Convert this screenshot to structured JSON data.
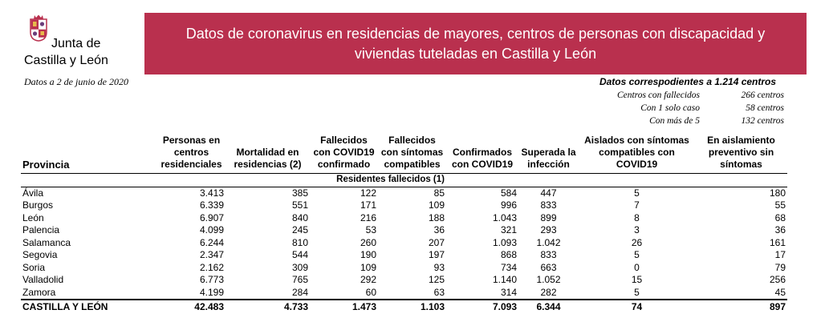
{
  "logo": {
    "line1": "Junta de",
    "line2": "Castilla y León"
  },
  "date_note": "Datos a 2 de junio de 2020",
  "banner_title": "Datos de coronavirus en residencias de mayores, centros de personas con discapacidad y viviendas tuteladas en Castilla y León",
  "summary": {
    "title": "Datos correspodientes a 1.214 centros",
    "rows": [
      {
        "label": "Centros con fallecidos",
        "value": "266 centros"
      },
      {
        "label": "Con 1 solo caso",
        "value": "58 centros"
      },
      {
        "label": "Con más de 5",
        "value": "132 centros"
      }
    ]
  },
  "table": {
    "headers": [
      "Provincia",
      "Personas en centros residenciales",
      "Mortalidad en residencias (2)",
      "Fallecidos con COVID19 confirmado",
      "Fallecidos con síntomas compatibles",
      "Confirmados con COVID19",
      "Superada la infección",
      "Aislados con síntomas compatibles con COVID19",
      "En aislamiento preventivo sin síntomas"
    ],
    "subheader": "Residentes fallecidos (1)",
    "rows": [
      [
        "Ávila",
        "3.413",
        "385",
        "122",
        "85",
        "584",
        "447",
        "5",
        "180"
      ],
      [
        "Burgos",
        "6.339",
        "551",
        "171",
        "109",
        "996",
        "833",
        "7",
        "55"
      ],
      [
        "León",
        "6.907",
        "840",
        "216",
        "188",
        "1.043",
        "899",
        "8",
        "68"
      ],
      [
        "Palencia",
        "4.099",
        "245",
        "53",
        "36",
        "321",
        "293",
        "3",
        "36"
      ],
      [
        "Salamanca",
        "6.244",
        "810",
        "260",
        "207",
        "1.093",
        "1.042",
        "26",
        "161"
      ],
      [
        "Segovia",
        "2.347",
        "544",
        "190",
        "197",
        "868",
        "833",
        "5",
        "17"
      ],
      [
        "Soria",
        "2.162",
        "309",
        "109",
        "93",
        "734",
        "663",
        "0",
        "79"
      ],
      [
        "Valladolid",
        "6.773",
        "765",
        "292",
        "125",
        "1.140",
        "1.052",
        "15",
        "256"
      ],
      [
        "Zamora",
        "4.199",
        "284",
        "60",
        "63",
        "314",
        "282",
        "5",
        "45"
      ]
    ],
    "total": [
      "CASTILLA Y LEÓN",
      "42.483",
      "4.733",
      "1.473",
      "1.103",
      "7.093",
      "6.344",
      "74",
      "897"
    ]
  }
}
